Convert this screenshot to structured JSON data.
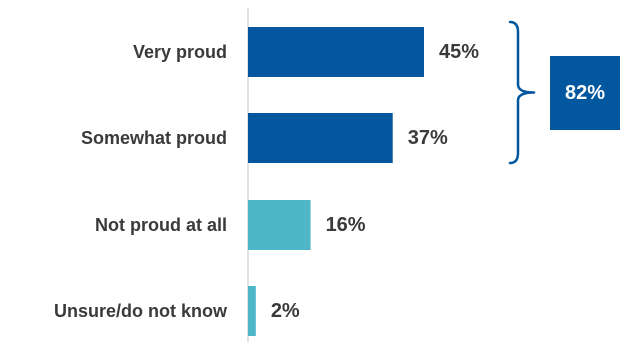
{
  "chart_data": {
    "type": "bar",
    "orientation": "horizontal",
    "categories": [
      "Very proud",
      "Somewhat proud",
      "Not proud at all",
      "Unsure/do not know"
    ],
    "values": [
      45,
      37,
      16,
      2
    ],
    "value_labels": [
      "45%",
      "37%",
      "16%",
      "2%"
    ],
    "unit": "%",
    "colors": [
      "#02579E",
      "#02579E",
      "#4DB6C7",
      "#4DB6C7"
    ],
    "grouped_total": {
      "label": "82%",
      "categories": [
        "Very proud",
        "Somewhat proud"
      ],
      "value": 82,
      "color": "#02579E"
    },
    "title": "",
    "xlabel": "",
    "ylabel": "",
    "xlim": [
      0,
      45
    ],
    "grid": false,
    "legend": "none"
  }
}
